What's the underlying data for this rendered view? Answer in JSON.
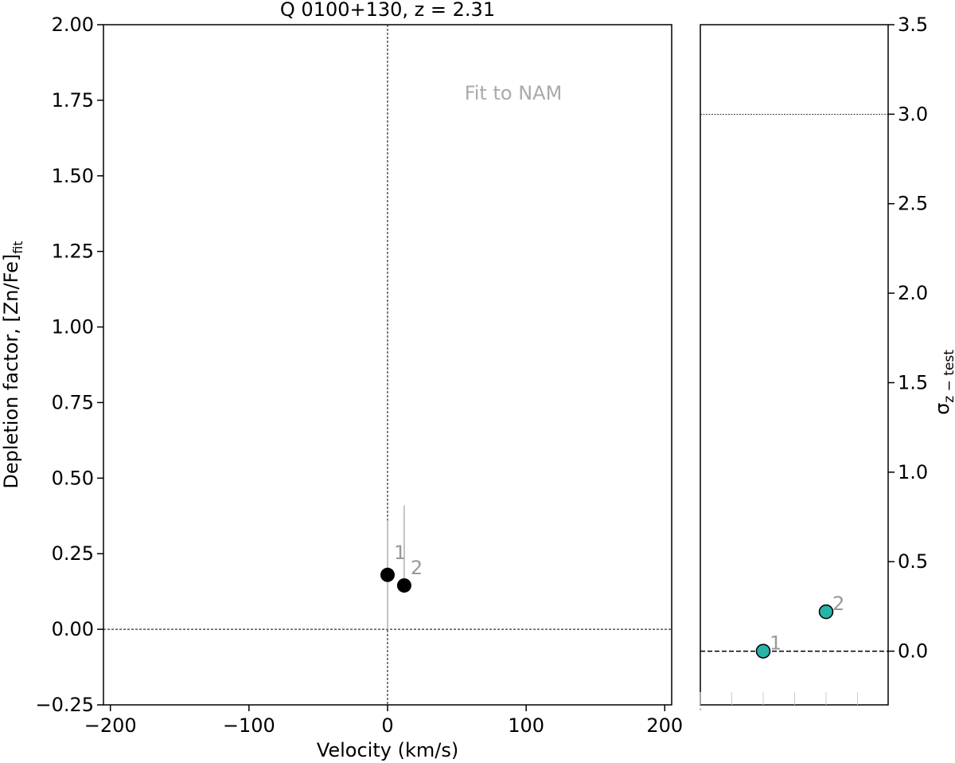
{
  "chart_data": [
    {
      "type": "scatter",
      "title": "Q 0100+130, z = 2.31",
      "xlabel": "Velocity (km/s)",
      "ylabel_main": "Depletion factor, [Zn/Fe]",
      "ylabel_sub": "fit",
      "xlim": [
        -205,
        205
      ],
      "ylim": [
        -0.25,
        2.0
      ],
      "xticks": [
        -200,
        -100,
        0,
        100,
        200
      ],
      "xtick_labels": [
        "−200",
        "−100",
        "0",
        "100",
        "200"
      ],
      "yticks": [
        -0.25,
        0.0,
        0.25,
        0.5,
        0.75,
        1.0,
        1.25,
        1.5,
        1.75,
        2.0
      ],
      "ytick_labels": [
        "−0.25",
        "0.00",
        "0.25",
        "0.50",
        "0.75",
        "1.00",
        "1.25",
        "1.50",
        "1.75",
        "2.00"
      ],
      "annotation": "Fit to NAM",
      "reference_lines": {
        "x": 0,
        "y": 0
      },
      "points": [
        {
          "label": "1",
          "x": 0,
          "y": 0.18,
          "err_low": 0.18,
          "err_high": 0.18
        },
        {
          "label": "2",
          "x": 12,
          "y": 0.145,
          "err_low": 0.025,
          "err_high": 0.265
        }
      ],
      "colors": {
        "points": "#000000",
        "errorbars": "#b0b0b0",
        "labels": "#999999",
        "annotation": "#aaaaaa"
      }
    },
    {
      "type": "scatter",
      "ylabel_main": "σ",
      "ylabel_sub": "z − test",
      "ylim": [
        -0.3,
        3.5
      ],
      "yticks": [
        0.0,
        0.5,
        1.0,
        1.5,
        2.0,
        2.5,
        3.0,
        3.5
      ],
      "ytick_labels": [
        "0.0",
        "0.5",
        "1.0",
        "1.5",
        "2.0",
        "2.5",
        "3.0",
        "3.5"
      ],
      "reference_lines": {
        "y_threshold": 3.0,
        "y_zero": 0.0
      },
      "points": [
        {
          "label": "1",
          "x_slot": 2,
          "y": 0.0
        },
        {
          "label": "2",
          "x_slot": 4,
          "y": 0.22
        }
      ],
      "colors": {
        "points": "#26b3a8",
        "labels": "#999999"
      }
    }
  ]
}
